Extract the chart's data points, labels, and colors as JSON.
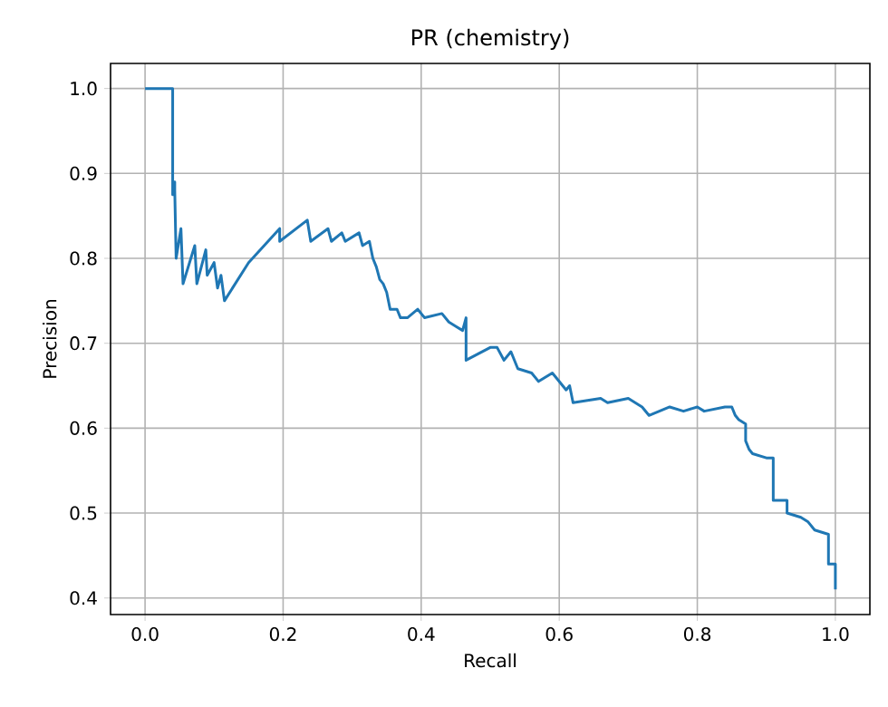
{
  "chart_data": {
    "type": "line",
    "title": "PR (chemistry)",
    "xlabel": "Recall",
    "ylabel": "Precision",
    "x": [
      0,
      0.04,
      0.04,
      0.043,
      0.043,
      0.045,
      0.052,
      0.055,
      0.072,
      0.075,
      0.088,
      0.09,
      0.1,
      0.105,
      0.11,
      0.115,
      0.15,
      0.195,
      0.195,
      0.235,
      0.24,
      0.265,
      0.27,
      0.285,
      0.29,
      0.31,
      0.315,
      0.325,
      0.33,
      0.335,
      0.34,
      0.345,
      0.35,
      0.355,
      0.365,
      0.37,
      0.38,
      0.395,
      0.405,
      0.43,
      0.44,
      0.45,
      0.46,
      0.465,
      0.465,
      0.5,
      0.51,
      0.52,
      0.53,
      0.54,
      0.56,
      0.57,
      0.59,
      0.6,
      0.61,
      0.615,
      0.62,
      0.66,
      0.67,
      0.7,
      0.72,
      0.73,
      0.76,
      0.78,
      0.8,
      0.81,
      0.84,
      0.85,
      0.855,
      0.86,
      0.87,
      0.87,
      0.875,
      0.88,
      0.9,
      0.91,
      0.91,
      0.93,
      0.93,
      0.95,
      0.96,
      0.97,
      0.99,
      0.99,
      1.0,
      1.0
    ],
    "series": [
      {
        "color": "#1f77b4",
        "values": [
          1.0,
          1.0,
          0.875,
          0.89,
          0.88,
          0.8,
          0.835,
          0.77,
          0.815,
          0.77,
          0.81,
          0.78,
          0.795,
          0.765,
          0.78,
          0.75,
          0.795,
          0.835,
          0.82,
          0.845,
          0.82,
          0.835,
          0.82,
          0.83,
          0.82,
          0.83,
          0.815,
          0.82,
          0.8,
          0.79,
          0.775,
          0.77,
          0.76,
          0.74,
          0.74,
          0.73,
          0.73,
          0.74,
          0.73,
          0.735,
          0.725,
          0.72,
          0.715,
          0.73,
          0.68,
          0.695,
          0.695,
          0.68,
          0.69,
          0.67,
          0.665,
          0.655,
          0.665,
          0.655,
          0.645,
          0.65,
          0.63,
          0.635,
          0.63,
          0.635,
          0.625,
          0.615,
          0.625,
          0.62,
          0.625,
          0.62,
          0.625,
          0.625,
          0.615,
          0.61,
          0.605,
          0.585,
          0.575,
          0.57,
          0.565,
          0.565,
          0.515,
          0.515,
          0.5,
          0.495,
          0.49,
          0.48,
          0.475,
          0.44,
          0.44,
          0.41
        ]
      }
    ],
    "xlim": [
      -0.05,
      1.05
    ],
    "ylim": [
      0.3805,
      1.0295
    ],
    "xticks": [
      {
        "value": 0,
        "label": "0.0"
      },
      0.2,
      0.4,
      0.6,
      0.8,
      {
        "value": 1,
        "label": "1.0"
      }
    ],
    "yticks": [
      0.4,
      0.5,
      0.6,
      0.7,
      0.8,
      0.9,
      {
        "value": 1,
        "label": "1.0"
      }
    ],
    "grid": true
  }
}
